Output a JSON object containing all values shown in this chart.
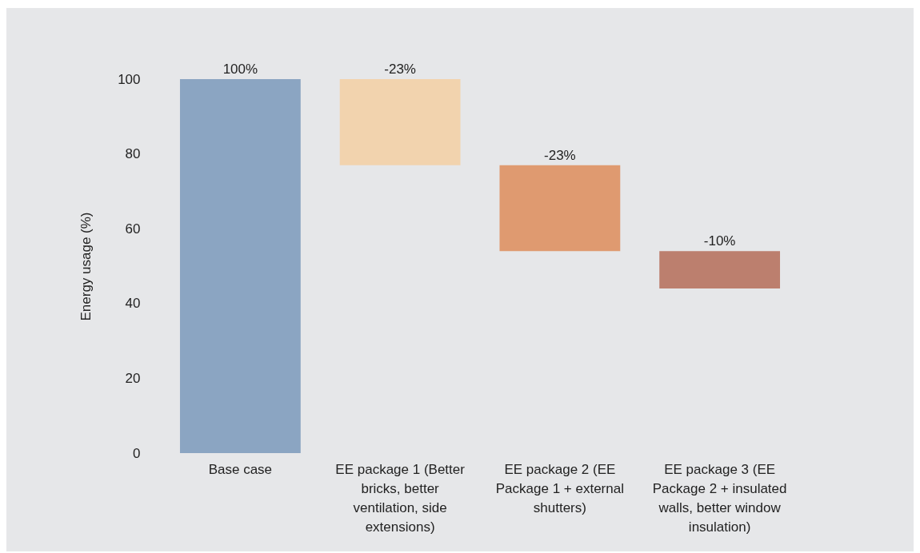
{
  "chart_data": {
    "type": "bar",
    "ylabel": "Energy usage (%)",
    "categories": [
      "Base case",
      "EE package 1 (Better bricks, better ventilation, side extensions)",
      "EE package 2 (EE Package 1 + external shutters)",
      "EE package 3 (EE Package 2 + insulated walls, better window insulation)"
    ],
    "values": [
      100,
      -23,
      -23,
      -10
    ],
    "base": [
      0,
      100,
      77,
      54
    ],
    "colors": [
      "#8ba5c2",
      "#f2d3ae",
      "#df9a70",
      "#bc7f6e"
    ],
    "value_labels": [
      "100%",
      "-23%",
      "-23%",
      "-10%"
    ],
    "ylim": [
      0,
      100
    ],
    "yticks": [
      0,
      20,
      40,
      60,
      80,
      100
    ],
    "grid": false
  }
}
